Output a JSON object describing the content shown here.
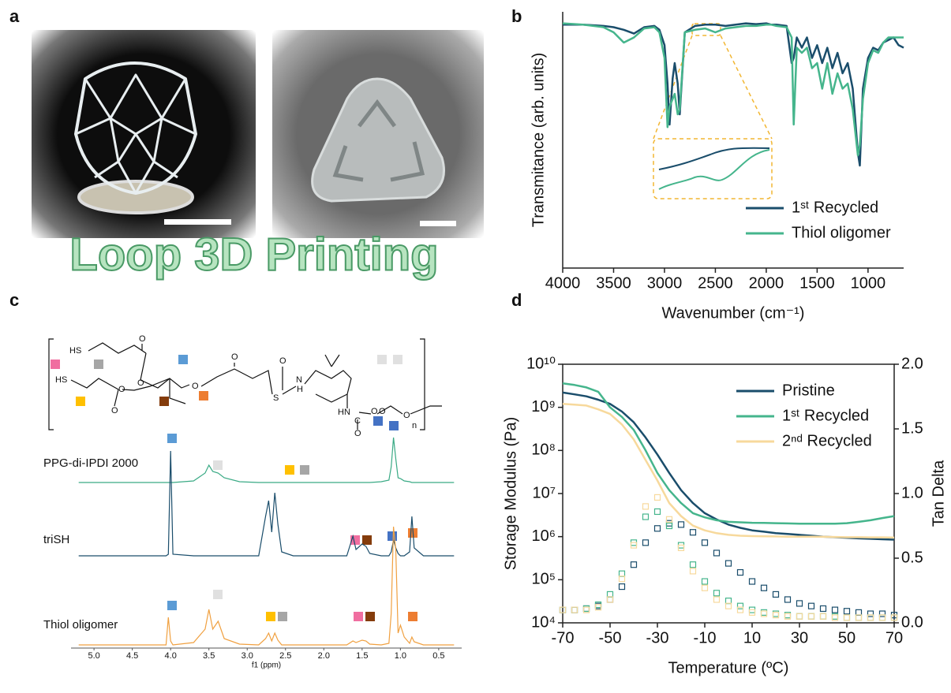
{
  "panels": [
    "a",
    "b",
    "c",
    "d"
  ],
  "banner": "Loop 3D Printing",
  "structure": {
    "atoms": [
      "HS",
      "O",
      "O",
      "HS",
      "O",
      "O",
      "O",
      "O",
      "S",
      "O",
      "N",
      "H",
      "HN",
      "O",
      "C",
      "O",
      "O",
      "O",
      "n"
    ]
  },
  "chart_data": [
    {
      "type": "spectrum",
      "xlabel": "f1 (ppm)",
      "xlim": [
        5.3,
        0.2
      ],
      "xticks": [
        {
          "value": 5,
          "label": "5.0"
        },
        4.5,
        {
          "value": 4,
          "label": "4.0"
        },
        3.5,
        {
          "value": 3,
          "label": "3.0"
        },
        2.5,
        {
          "value": 2,
          "label": "2.0"
        },
        1.5,
        {
          "value": 1,
          "label": "1.0"
        },
        0.5
      ],
      "ylim": [
        0,
        150
      ],
      "x": [
        5.2,
        4.5,
        4.06,
        4.03,
        4.0,
        3.97,
        3.7,
        3.55,
        3.5,
        3.45,
        3.38,
        3.3,
        3.1,
        2.85,
        2.76,
        2.72,
        2.68,
        2.64,
        2.6,
        2.55,
        2.4,
        2.0,
        1.7,
        1.62,
        1.58,
        1.5,
        1.45,
        1.4,
        1.25,
        1.15,
        1.12,
        1.09,
        1.06,
        1.03,
        1.0,
        0.95,
        0.88,
        0.85,
        0.82,
        0.7,
        0.3
      ],
      "series": [
        {
          "name": "PPG-di-IPDI 2000",
          "color": "#3aaa85",
          "values": [
            0,
            0,
            0,
            0,
            0,
            0,
            2,
            12,
            22,
            14,
            12,
            6,
            1,
            0,
            0,
            0,
            0,
            0,
            0,
            0,
            0,
            0,
            0,
            0,
            0,
            0,
            0,
            0,
            1,
            3,
            20,
            57,
            30,
            6,
            5,
            2,
            1,
            0,
            0,
            0,
            0
          ]
        },
        {
          "name": "triSH",
          "color": "#1a4d6b",
          "values": [
            0,
            0,
            0,
            2,
            133,
            2,
            0,
            0,
            0,
            0,
            0,
            0,
            0,
            0,
            50,
            70,
            30,
            80,
            40,
            5,
            0,
            0,
            0,
            25,
            8,
            15,
            12,
            3,
            0,
            0,
            5,
            20,
            10,
            3,
            0,
            0,
            5,
            50,
            10,
            0,
            0
          ]
        },
        {
          "name": "Thiol oligomer",
          "color": "#f0a040",
          "values": [
            0,
            0,
            0,
            35,
            5,
            0,
            3,
            20,
            45,
            20,
            30,
            8,
            1,
            0,
            8,
            15,
            5,
            15,
            6,
            0,
            0,
            0,
            0,
            5,
            3,
            6,
            5,
            1,
            0,
            2,
            40,
            150,
            120,
            15,
            25,
            10,
            2,
            10,
            4,
            0,
            0
          ]
        }
      ]
    },
    {
      "type": "line",
      "xlabel": "Wavenumber (cm⁻¹)",
      "ylabel": "Transmitance (arb. units)",
      "xlim": [
        4000,
        650
      ],
      "xticks": [
        4000,
        3500,
        3000,
        2500,
        2000,
        1500,
        1000
      ],
      "ylim": [
        0,
        1
      ],
      "legend": "lower right",
      "x": [
        4000,
        3800,
        3600,
        3500,
        3400,
        3300,
        3200,
        3100,
        3050,
        3000,
        2970,
        2950,
        2920,
        2900,
        2870,
        2850,
        2800,
        2700,
        2600,
        2500,
        2400,
        2300,
        2200,
        2100,
        2000,
        1950,
        1900,
        1800,
        1750,
        1730,
        1700,
        1650,
        1600,
        1550,
        1500,
        1450,
        1400,
        1350,
        1300,
        1250,
        1200,
        1150,
        1100,
        1080,
        1050,
        1000,
        950,
        900,
        850,
        800,
        750,
        700,
        650
      ],
      "series": [
        {
          "name": "1ˢᵗ Recycled",
          "color": "#1a4d6b",
          "values": [
            0.95,
            0.95,
            0.945,
            0.94,
            0.93,
            0.915,
            0.94,
            0.945,
            0.93,
            0.87,
            0.72,
            0.56,
            0.74,
            0.8,
            0.72,
            0.6,
            0.92,
            0.945,
            0.95,
            0.95,
            0.945,
            0.95,
            0.955,
            0.952,
            0.955,
            0.95,
            0.95,
            0.945,
            0.8,
            0.82,
            0.9,
            0.86,
            0.9,
            0.82,
            0.87,
            0.8,
            0.86,
            0.78,
            0.84,
            0.76,
            0.8,
            0.7,
            0.45,
            0.4,
            0.7,
            0.82,
            0.86,
            0.85,
            0.88,
            0.89,
            0.9,
            0.87,
            0.86
          ]
        },
        {
          "name": "Thiol oligomer",
          "color": "#45b58c",
          "values": [
            0.955,
            0.95,
            0.94,
            0.92,
            0.88,
            0.9,
            0.935,
            0.94,
            0.92,
            0.82,
            0.55,
            0.63,
            0.66,
            0.68,
            0.6,
            0.62,
            0.92,
            0.93,
            0.935,
            0.92,
            0.935,
            0.94,
            0.945,
            0.945,
            0.95,
            0.95,
            0.945,
            0.94,
            0.9,
            0.56,
            0.86,
            0.84,
            0.86,
            0.78,
            0.8,
            0.7,
            0.8,
            0.68,
            0.76,
            0.7,
            0.72,
            0.62,
            0.44,
            0.48,
            0.66,
            0.8,
            0.85,
            0.84,
            0.88,
            0.9,
            0.9,
            0.9,
            0.9
          ]
        }
      ]
    },
    {
      "type": "line",
      "xlabel": "Temperature (ºC)",
      "ylabel": "Storage Modulus (Pa)",
      "y2label": "Tan Delta",
      "xlim": [
        -70,
        70
      ],
      "xticks": [
        -70,
        -50,
        -30,
        -10,
        10,
        30,
        50,
        70
      ],
      "yscale": "log",
      "ylim": [
        10000,
        10000000000
      ],
      "yticks": [
        {
          "value": 10000,
          "label": "10⁴"
        },
        {
          "value": 100000,
          "label": "10⁵"
        },
        {
          "value": 1000000,
          "label": "10⁶"
        },
        {
          "value": 10000000,
          "label": "10⁷"
        },
        {
          "value": 100000000,
          "label": "10⁸"
        },
        {
          "value": 1000000000,
          "label": "10⁹"
        },
        {
          "value": 10000000000,
          "label": "10¹⁰"
        }
      ],
      "y2lim": [
        0,
        2
      ],
      "y2ticks": [
        {
          "value": 0,
          "label": "0.0"
        },
        0.5,
        {
          "value": 1,
          "label": "1.0"
        },
        1.5,
        {
          "value": 2,
          "label": "2.0"
        }
      ],
      "legend": "upper right",
      "x": [
        -70,
        -65,
        -60,
        -55,
        -50,
        -45,
        -40,
        -35,
        -30,
        -25,
        -20,
        -15,
        -10,
        -5,
        0,
        5,
        10,
        15,
        20,
        25,
        30,
        35,
        40,
        45,
        50,
        55,
        60,
        65,
        70
      ],
      "series": [
        {
          "name": "Pristine",
          "color": "#1a4d6b",
          "values": [
            2200000000,
            2000000000,
            1800000000,
            1500000000,
            1200000000,
            800000000,
            450000000,
            200000000,
            80000000,
            30000000,
            12000000,
            6000000,
            3500000,
            2500000,
            1900000,
            1600000,
            1400000,
            1300000,
            1200000,
            1150000,
            1100000,
            1050000,
            1000000,
            970000,
            940000,
            910000,
            890000,
            870000,
            850000
          ]
        },
        {
          "name": "1ˢᵗ Recycled",
          "color": "#45b58c",
          "values": [
            3600000000,
            3300000000,
            2900000000,
            2300000000,
            1000000000,
            600000000,
            300000000,
            100000000,
            30000000,
            12000000,
            6000000,
            3500000,
            2800000,
            2400000,
            2200000,
            2150000,
            2100000,
            2080000,
            2050000,
            2030000,
            2000000,
            2000000,
            2000000,
            2000000,
            2050000,
            2200000,
            2400000,
            2700000,
            3000000
          ]
        },
        {
          "name": "2ⁿᵈ Recycled",
          "color": "#f7d99c",
          "values": [
            1200000000,
            1150000000,
            1100000000,
            900000000,
            700000000,
            400000000,
            180000000,
            60000000,
            20000000,
            6000000,
            3000000,
            1800000,
            1400000,
            1200000,
            1100000,
            1050000,
            1030000,
            1020000,
            1010000,
            1000000,
            1000000,
            1000000,
            990000,
            980000,
            970000,
            970000,
            960000,
            960000,
            950000
          ]
        },
        {
          "color": "#1a4d6b",
          "axis": "y2",
          "marker": "open-square",
          "values": [
            0.1,
            0.1,
            0.11,
            0.13,
            0.18,
            0.28,
            0.45,
            0.62,
            0.73,
            0.77,
            0.76,
            0.7,
            0.62,
            0.54,
            0.46,
            0.39,
            0.32,
            0.27,
            0.22,
            0.18,
            0.15,
            0.13,
            0.11,
            0.1,
            0.09,
            0.08,
            0.07,
            0.07,
            0.06
          ]
        },
        {
          "color": "#45b58c",
          "axis": "y2",
          "marker": "open-square",
          "values": [
            0.1,
            0.1,
            0.11,
            0.14,
            0.22,
            0.38,
            0.62,
            0.82,
            0.86,
            0.75,
            0.6,
            0.45,
            0.32,
            0.23,
            0.17,
            0.13,
            0.1,
            0.08,
            0.07,
            0.06,
            0.05,
            0.05,
            0.05,
            0.05,
            0.04,
            0.04,
            0.04,
            0.04,
            0.04
          ]
        },
        {
          "color": "#f7d99c",
          "axis": "y2",
          "marker": "open-square",
          "values": [
            0.1,
            0.1,
            0.1,
            0.12,
            0.18,
            0.34,
            0.6,
            0.9,
            0.97,
            0.8,
            0.58,
            0.4,
            0.27,
            0.18,
            0.13,
            0.1,
            0.08,
            0.07,
            0.06,
            0.05,
            0.05,
            0.05,
            0.05,
            0.04,
            0.04,
            0.04,
            0.04,
            0.04,
            0.04
          ]
        }
      ]
    }
  ]
}
